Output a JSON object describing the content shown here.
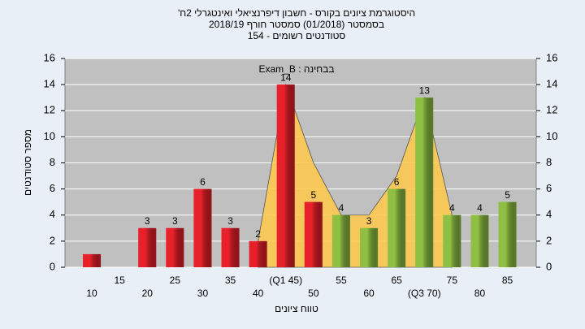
{
  "chart_data": {
    "type": "bar",
    "title": "היסטוגרמת ציונים בקורס - חשבון דיפרנציאלי ואינטגרלי 2ח'",
    "subtitle": "בסמסטר  (01/2018)  סמסטר חורף 2018/19",
    "subtitle2": "סטודנטים רשומים - 154",
    "annotation": "בבחינה : Exam_B",
    "y_label": "מספר סטודנטים",
    "x_label": "טווח ציונים",
    "categories": [
      "10",
      "15",
      "20",
      "25",
      "30",
      "35",
      "40",
      "(Q1 45)",
      "50",
      "55",
      "60",
      "65",
      "(Q3 70)",
      "75",
      "80",
      "85"
    ],
    "values": [
      1,
      0,
      3,
      3,
      6,
      3,
      2,
      14,
      5,
      4,
      3,
      6,
      13,
      4,
      4,
      5
    ],
    "colors": [
      "#e8202a",
      "#e8202a",
      "#e8202a",
      "#e8202a",
      "#e8202a",
      "#e8202a",
      "#e8202a",
      "#e8202a",
      "#e8202a",
      "#8fc043",
      "#8fc043",
      "#8fc043",
      "#8fc043",
      "#8fc043",
      "#8fc043",
      "#8fc043"
    ],
    "area": {
      "color": "#ffc94a",
      "values": [
        null,
        null,
        null,
        null,
        null,
        null,
        2,
        14,
        8,
        4,
        4,
        7,
        13,
        4,
        null,
        null
      ]
    },
    "ylim": [
      0,
      16
    ],
    "yticks": [
      0,
      2,
      4,
      6,
      8,
      10,
      12,
      14,
      16
    ],
    "grid": true
  }
}
